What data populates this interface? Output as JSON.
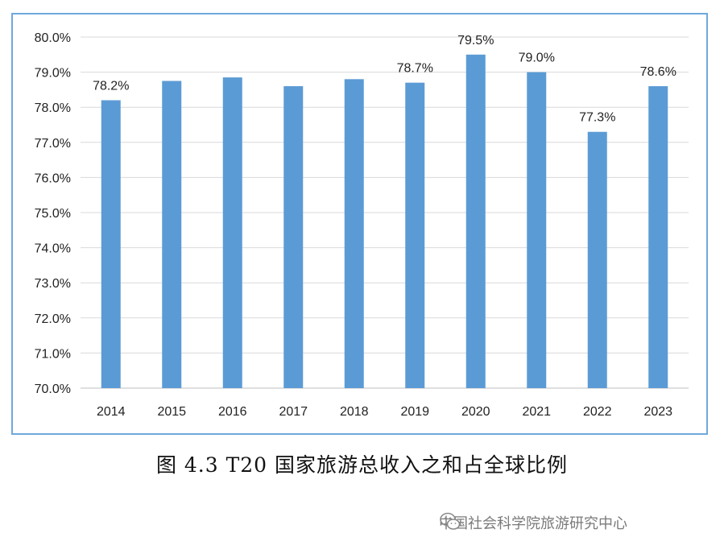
{
  "chart_data": {
    "type": "bar",
    "categories": [
      "2014",
      "2015",
      "2016",
      "2017",
      "2018",
      "2019",
      "2020",
      "2021",
      "2022",
      "2023"
    ],
    "values": [
      78.2,
      78.75,
      78.85,
      78.6,
      78.8,
      78.7,
      79.5,
      79.0,
      77.3,
      78.6
    ],
    "data_labels": [
      "78.2%",
      "",
      "",
      "",
      "",
      "78.7%",
      "79.5%",
      "79.0%",
      "77.3%",
      "78.6%"
    ],
    "yticks": [
      "70.0%",
      "71.0%",
      "72.0%",
      "73.0%",
      "74.0%",
      "75.0%",
      "76.0%",
      "77.0%",
      "78.0%",
      "79.0%",
      "80.0%"
    ],
    "ylim": [
      70,
      80
    ],
    "grid": true,
    "bar_color": "#5b9bd5",
    "title": "",
    "xlabel": "",
    "ylabel": ""
  },
  "caption": "图 4.3 T20 国家旅游总收入之和占全球比例",
  "watermark": {
    "text": "中国社会科学院旅游研究中心",
    "icon": "wechat-icon"
  }
}
